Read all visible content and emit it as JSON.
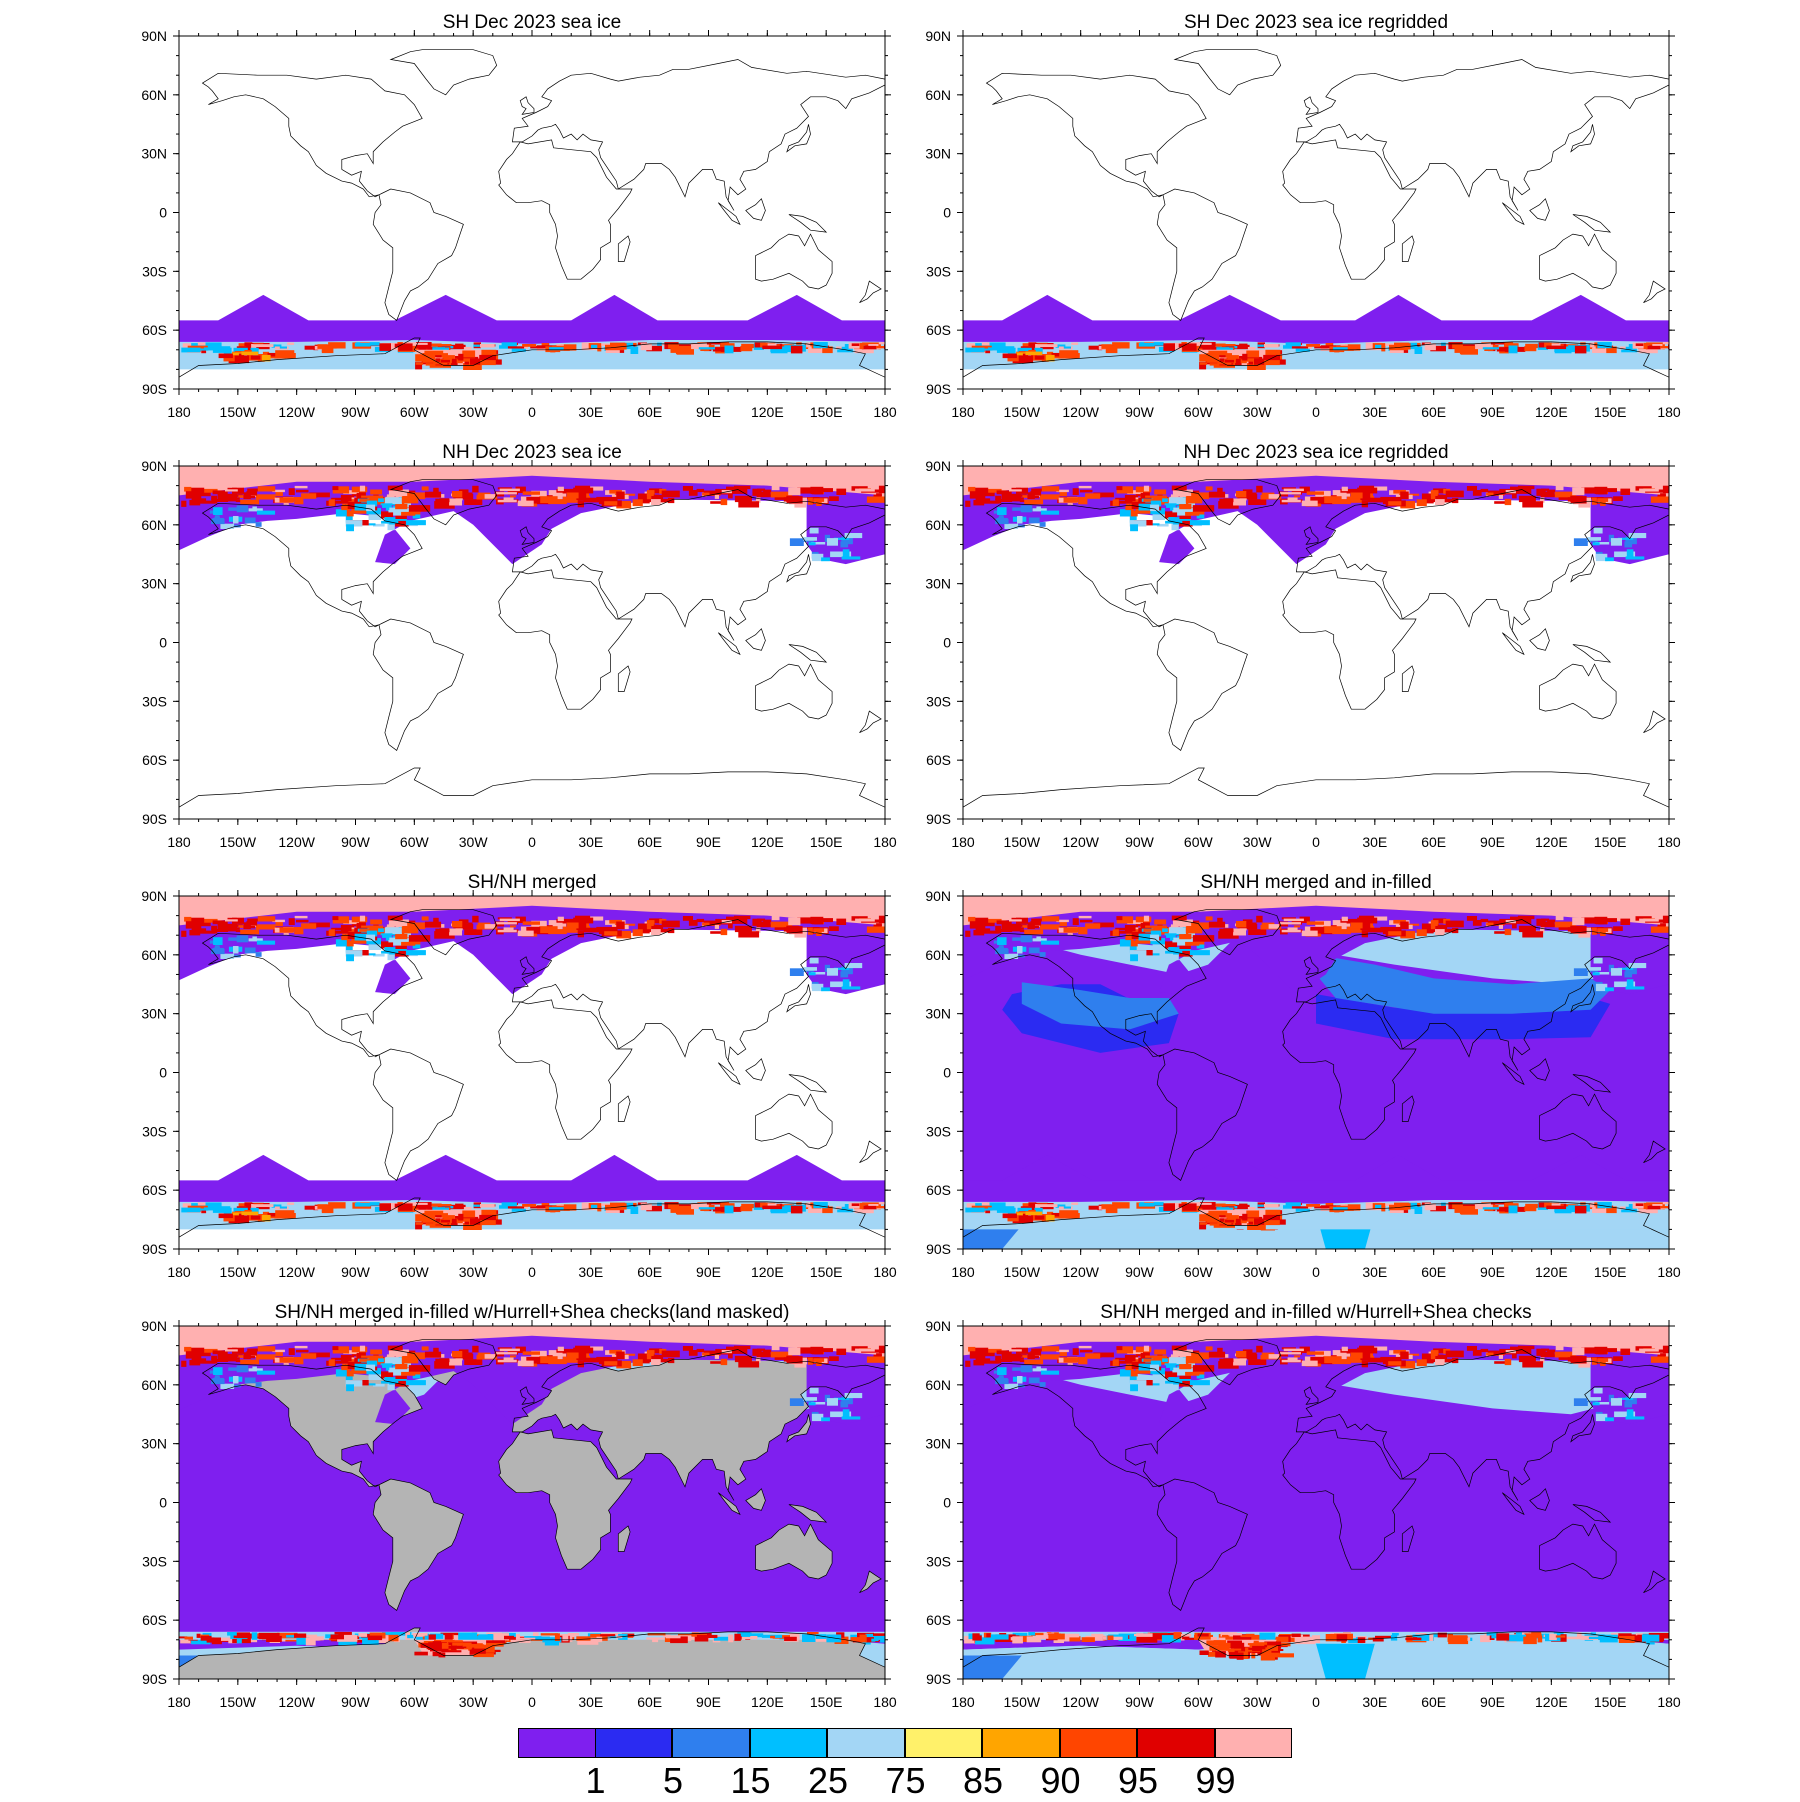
{
  "panels": [
    {
      "title": "SH Dec 2023 sea ice",
      "lon_labels_variant": "a",
      "fields": [
        "sh"
      ]
    },
    {
      "title": "SH Dec 2023 sea ice regridded",
      "lon_labels_variant": "b",
      "fields": [
        "sh"
      ]
    },
    {
      "title": "NH Dec 2023 sea ice",
      "lon_labels_variant": "a",
      "fields": [
        "nh"
      ]
    },
    {
      "title": "NH Dec 2023 sea ice regridded",
      "lon_labels_variant": "b",
      "fields": [
        "nh"
      ]
    },
    {
      "title": "SH/NH merged",
      "lon_labels_variant": "a",
      "fields": [
        "sh",
        "nh"
      ]
    },
    {
      "title": "SH/NH merged and in-filled",
      "lon_labels_variant": "b",
      "fields": [
        "infill",
        "sh",
        "nh"
      ]
    },
    {
      "title": "SH/NH merged in-filled w/Hurrell+Shea checks(land masked)",
      "lon_labels_variant": "a",
      "fields": [
        "full",
        "land",
        "nh"
      ]
    },
    {
      "title": "SH/NH merged and in-filled w/Hurrell+Shea checks",
      "lon_labels_variant": "b",
      "fields": [
        "full",
        "shelf",
        "nh"
      ]
    }
  ],
  "axes": {
    "lat_ticks": [
      "90N",
      "60N",
      "30N",
      "0",
      "30S",
      "60S",
      "90S"
    ],
    "lon_ticks_a": [
      "180",
      "150W",
      "120W",
      "90W",
      "60W",
      "30W",
      "0",
      "30E",
      "60E",
      "90E",
      "120E",
      "150E",
      "180"
    ],
    "lon_ticks_b": [
      "180",
      "150W",
      "120W",
      "90W",
      "60W",
      "30W",
      "0",
      "30E",
      "60E",
      "90E",
      "120E",
      "150E",
      "180"
    ],
    "lat_range": [
      -90,
      90
    ],
    "lon_range": [
      -180,
      180
    ]
  },
  "colorbar": {
    "labels": [
      "1",
      "5",
      "15",
      "25",
      "75",
      "85",
      "90",
      "95",
      "99"
    ],
    "colors": [
      "#7f1fef",
      "#2b2bf2",
      "#2f7fee",
      "#00bfff",
      "#a3d6f5",
      "#fff16a",
      "#ffa500",
      "#ff4500",
      "#e00000",
      "#ffb0b0"
    ]
  },
  "colors": {
    "land_mask": "#b4b4b4",
    "coast": "#000000"
  }
}
